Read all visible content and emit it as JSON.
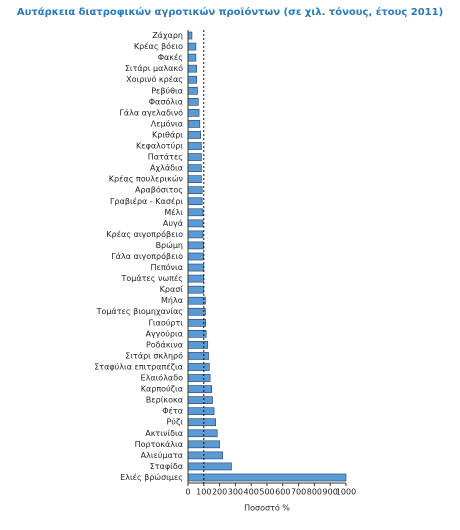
{
  "chart_data": {
    "type": "hbar",
    "title": "Αυτάρκεια διατροφικών αγροτικών προϊόντων (σε χιλ. τόνους, έτους 2011)",
    "x_label": "Ποσοστό %",
    "categories": [
      "Ζάχαρη",
      "Κρέας βόειο",
      "Φακές",
      "Σιτάρι μαλακό",
      "Χοιρινό κρέας",
      "Ρεβύθια",
      "Φασόλια",
      "Γάλα αγελαδινό",
      "Λεμόνια",
      "Κριθάρι",
      "Κεφαλοτύρι",
      "Πατάτες",
      "Αχλάδια",
      "Κρέας πουλερικών",
      "Αραβόσιτος",
      "Γραβιέρα - Κασέρι",
      "Μέλι",
      "Αυγά",
      "Κρέας αιγοπρόβειο",
      "Βρώμη",
      "Γάλα αιγοπρόβειο",
      "Πεπόνια",
      "Τομάτες νωπές",
      "Κρασί",
      "Μήλα",
      "Τομάτες βιομηχανίας",
      "Γιαούρτι",
      "Αγγούρια",
      "Ροδάκινα",
      "Σιτάρι σκληρό",
      "Σταφύλια επιτραπέζια",
      "Ελαιόλαδο",
      "Καρπούζια",
      "Βερίκοκα",
      "Φέτα",
      "Ρύζι",
      "Ακτινίδια",
      "Πορτοκάλια",
      "Αλιεύματα",
      "Σταφίδα",
      "Ελιές βρώσιμες"
    ],
    "values": [
      25,
      50,
      50,
      55,
      55,
      60,
      65,
      70,
      75,
      80,
      85,
      85,
      85,
      85,
      90,
      90,
      95,
      95,
      95,
      98,
      98,
      100,
      100,
      100,
      110,
      110,
      112,
      115,
      125,
      130,
      135,
      140,
      150,
      155,
      165,
      175,
      185,
      200,
      220,
      275,
      1000
    ],
    "color": "#5b9bd5",
    "reference_line": 100,
    "xlim": [
      0,
      1000
    ],
    "xticks": [
      0,
      100,
      200,
      300,
      400,
      500,
      600,
      700,
      800,
      900,
      1000
    ]
  }
}
